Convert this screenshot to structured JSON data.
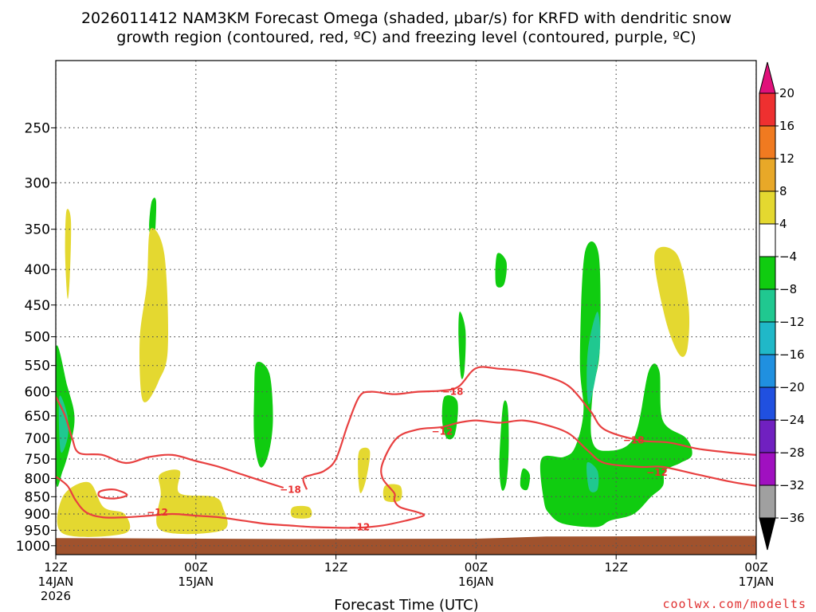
{
  "chart_data": {
    "type": "time-height contour",
    "title_line1": "2026011412 NAM3KM Forecast Omega (shaded, μbar/s) for KRFD with dendritic snow",
    "title_line2": "growth region (contoured, red, ºC) and freezing level (contoured, purple, ºC)",
    "xlabel": "Forecast Time (UTC)",
    "credit": "coolwx.com/modelts",
    "x_ticks": [
      {
        "hour": 0,
        "line1": "12Z",
        "line2": "14JAN",
        "line3": "2026"
      },
      {
        "hour": 12,
        "line1": "00Z",
        "line2": "15JAN",
        "line3": ""
      },
      {
        "hour": 24,
        "line1": "12Z",
        "line2": "",
        "line3": ""
      },
      {
        "hour": 36,
        "line1": "00Z",
        "line2": "16JAN",
        "line3": ""
      },
      {
        "hour": 48,
        "line1": "12Z",
        "line2": "",
        "line3": ""
      },
      {
        "hour": 60,
        "line1": "00Z",
        "line2": "17JAN",
        "line3": ""
      }
    ],
    "x_range_hours": [
      0,
      60
    ],
    "y_ticks": [
      250,
      300,
      350,
      400,
      450,
      500,
      550,
      600,
      650,
      700,
      750,
      800,
      850,
      900,
      950,
      1000
    ],
    "y_range_mb": [
      200,
      1030
    ],
    "y_scale": "log-pressure",
    "colorbar": {
      "labels": [
        "20",
        "16",
        "12",
        "8",
        "4",
        "−4",
        "−8",
        "−12",
        "−16",
        "−20",
        "−24",
        "−28",
        "−32",
        "−36"
      ],
      "colors": [
        "#e0107a",
        "#ee3030",
        "#f07a20",
        "#e8a828",
        "#e4d830",
        "#ffffff",
        "#10cc10",
        "#20c890",
        "#20b8c8",
        "#2090e0",
        "#2050e0",
        "#7020c0",
        "#a010c0",
        "#a0a0a0",
        "#000000"
      ]
    },
    "omega_areas": [
      {
        "sign": "up",
        "level": -4,
        "color": "#10cc10",
        "points": [
          [
            0,
            520
          ],
          [
            1,
            590
          ],
          [
            1.6,
            650
          ],
          [
            1.3,
            710
          ],
          [
            0.6,
            780
          ],
          [
            0,
            800
          ]
        ]
      },
      {
        "sign": "up",
        "level": -8,
        "color": "#20c890",
        "points": [
          [
            0.3,
            610
          ],
          [
            1,
            650
          ],
          [
            1,
            700
          ],
          [
            0.4,
            730
          ]
        ]
      },
      {
        "sign": "up",
        "level": -4,
        "color": "#10cc10",
        "points": [
          [
            8.2,
            320
          ],
          [
            8.6,
            320
          ],
          [
            8.4,
            370
          ],
          [
            8,
            350
          ]
        ]
      },
      {
        "sign": "up",
        "level": -4,
        "color": "#10cc10",
        "points": [
          [
            17.2,
            545
          ],
          [
            18.3,
            565
          ],
          [
            18.6,
            660
          ],
          [
            18.2,
            740
          ],
          [
            17.5,
            770
          ],
          [
            17,
            700
          ],
          [
            17,
            600
          ]
        ]
      },
      {
        "sign": "up",
        "level": -4,
        "color": "#10cc10",
        "points": [
          [
            34.6,
            460
          ],
          [
            35.1,
            490
          ],
          [
            35,
            560
          ],
          [
            34.7,
            570
          ],
          [
            34.5,
            500
          ]
        ]
      },
      {
        "sign": "up",
        "level": -4,
        "color": "#10cc10",
        "points": [
          [
            33.3,
            610
          ],
          [
            34.4,
            620
          ],
          [
            34.2,
            690
          ],
          [
            33.5,
            700
          ],
          [
            33.1,
            660
          ]
        ]
      },
      {
        "sign": "up",
        "level": -4,
        "color": "#10cc10",
        "points": [
          [
            37.8,
            380
          ],
          [
            38.6,
            390
          ],
          [
            38.4,
            420
          ],
          [
            37.7,
            420
          ]
        ]
      },
      {
        "sign": "up",
        "level": -4,
        "color": "#10cc10",
        "points": [
          [
            38.3,
            630
          ],
          [
            38.7,
            630
          ],
          [
            38.8,
            720
          ],
          [
            38.6,
            810
          ],
          [
            38.2,
            830
          ],
          [
            38,
            760
          ]
        ]
      },
      {
        "sign": "up",
        "level": -4,
        "color": "#10cc10",
        "points": [
          [
            40,
            775
          ],
          [
            40.6,
            790
          ],
          [
            40.4,
            830
          ],
          [
            39.8,
            820
          ]
        ]
      },
      {
        "sign": "up",
        "level": -4,
        "color": "#10cc10",
        "points": [
          [
            45.3,
            380
          ],
          [
            46.5,
            380
          ],
          [
            46.6,
            520
          ],
          [
            46,
            600
          ],
          [
            45.9,
            700
          ],
          [
            47,
            730
          ],
          [
            49.5,
            700
          ],
          [
            50.8,
            560
          ],
          [
            51.7,
            560
          ],
          [
            52,
            660
          ],
          [
            54,
            700
          ],
          [
            54.5,
            740
          ],
          [
            53.5,
            760
          ],
          [
            52.2,
            780
          ],
          [
            52,
            820
          ],
          [
            51,
            850
          ],
          [
            49.5,
            900
          ],
          [
            47.5,
            920
          ],
          [
            46.3,
            940
          ],
          [
            43.5,
            930
          ],
          [
            42.3,
            900
          ],
          [
            41.8,
            860
          ],
          [
            41.6,
            750
          ],
          [
            43.5,
            745
          ],
          [
            44.5,
            720
          ],
          [
            45.2,
            640
          ],
          [
            44.9,
            540
          ]
        ]
      },
      {
        "sign": "up",
        "level": -8,
        "color": "#20c890",
        "points": [
          [
            45.6,
            520
          ],
          [
            46.4,
            460
          ],
          [
            46.6,
            520
          ],
          [
            45.8,
            620
          ],
          [
            45.5,
            600
          ]
        ]
      },
      {
        "sign": "up",
        "level": -8,
        "color": "#20c890",
        "points": [
          [
            45.5,
            760
          ],
          [
            46.4,
            780
          ],
          [
            46.4,
            830
          ],
          [
            45.7,
            830
          ]
        ]
      },
      {
        "sign": "down",
        "level": 4,
        "color": "#e4d830",
        "points": [
          [
            0.9,
            330
          ],
          [
            1.3,
            340
          ],
          [
            1.2,
            410
          ],
          [
            1,
            440
          ],
          [
            0.8,
            380
          ]
        ]
      },
      {
        "sign": "down",
        "level": 4,
        "color": "#e4d830",
        "points": [
          [
            8.1,
            350
          ],
          [
            9.3,
            380
          ],
          [
            9.6,
            520
          ],
          [
            8.8,
            580
          ],
          [
            7.8,
            620
          ],
          [
            7.3,
            600
          ],
          [
            7.2,
            500
          ],
          [
            7.8,
            420
          ]
        ]
      },
      {
        "sign": "down",
        "level": 4,
        "color": "#e4d830",
        "points": [
          [
            0.6,
            850
          ],
          [
            2.8,
            810
          ],
          [
            4.1,
            880
          ],
          [
            5.9,
            900
          ],
          [
            5.9,
            960
          ],
          [
            0.6,
            960
          ]
        ]
      },
      {
        "sign": "down",
        "level": 4,
        "color": "#e4d830",
        "points": [
          [
            8.9,
            790
          ],
          [
            10.6,
            780
          ],
          [
            10.6,
            840
          ],
          [
            13.5,
            850
          ],
          [
            14.3,
            880
          ],
          [
            14.3,
            950
          ],
          [
            9,
            950
          ],
          [
            9,
            840
          ]
        ]
      },
      {
        "sign": "down",
        "level": 4,
        "color": "#e4d830",
        "points": [
          [
            20.3,
            880
          ],
          [
            21.7,
            880
          ],
          [
            21.8,
            910
          ],
          [
            20.3,
            910
          ]
        ]
      },
      {
        "sign": "down",
        "level": 4,
        "color": "#e4d830",
        "points": [
          [
            26,
            730
          ],
          [
            26.9,
            730
          ],
          [
            26.6,
            800
          ],
          [
            26.1,
            840
          ],
          [
            25.9,
            790
          ]
        ]
      },
      {
        "sign": "down",
        "level": 4,
        "color": "#e4d830",
        "points": [
          [
            28.2,
            820
          ],
          [
            29.5,
            820
          ],
          [
            29.5,
            860
          ],
          [
            28.2,
            860
          ]
        ]
      },
      {
        "sign": "down",
        "level": 4,
        "color": "#e4d830",
        "points": [
          [
            51.3,
            380
          ],
          [
            53.2,
            380
          ],
          [
            54.2,
            450
          ],
          [
            54.1,
            520
          ],
          [
            53.4,
            530
          ],
          [
            52.2,
            470
          ]
        ]
      }
    ],
    "dgz_contours": [
      {
        "label": "−18",
        "label_hour": 20.1,
        "label_mb": 830,
        "points": [
          [
            0,
            610
          ],
          [
            0.8,
            650
          ],
          [
            1.4,
            700
          ],
          [
            2,
            735
          ],
          [
            4,
            740
          ],
          [
            6,
            760
          ],
          [
            8,
            745
          ],
          [
            10,
            740
          ],
          [
            12,
            755
          ],
          [
            14,
            770
          ],
          [
            16,
            790
          ],
          [
            18,
            810
          ],
          [
            19.5,
            825
          ]
        ]
      },
      {
        "label": "−18",
        "label_hour": 34,
        "label_mb": 600,
        "points": [
          [
            21.5,
            830
          ],
          [
            21.2,
            800
          ],
          [
            22,
            790
          ],
          [
            23,
            780
          ],
          [
            24,
            750
          ],
          [
            25,
            670
          ],
          [
            26,
            610
          ],
          [
            27,
            600
          ],
          [
            29,
            605
          ],
          [
            31,
            600
          ],
          [
            33,
            598
          ],
          [
            34.5,
            590
          ],
          [
            36,
            555
          ],
          [
            38,
            556
          ],
          [
            40,
            560
          ],
          [
            42,
            570
          ],
          [
            44,
            590
          ],
          [
            45.8,
            640
          ],
          [
            47,
            680
          ],
          [
            50,
            705
          ],
          [
            52.5,
            710
          ],
          [
            55,
            725
          ],
          [
            58,
            735
          ],
          [
            60,
            740
          ]
        ]
      },
      {
        "label": "−12",
        "label_hour": 33.1,
        "label_mb": 685,
        "points": [
          [
            0,
            795
          ],
          [
            1,
            820
          ],
          [
            1.7,
            860
          ],
          [
            2.6,
            895
          ],
          [
            4,
            910
          ],
          [
            6,
            910
          ],
          [
            8,
            905
          ],
          [
            10,
            900
          ],
          [
            12,
            905
          ],
          [
            14,
            910
          ],
          [
            16,
            920
          ],
          [
            18,
            930
          ],
          [
            20,
            935
          ],
          [
            22,
            940
          ],
          [
            24,
            942
          ],
          [
            26,
            942
          ],
          [
            28,
            935
          ],
          [
            30,
            920
          ],
          [
            31.5,
            905
          ],
          [
            31,
            895
          ],
          [
            29.5,
            880
          ],
          [
            29,
            860
          ],
          [
            29,
            840
          ],
          [
            28,
            800
          ],
          [
            28,
            760
          ],
          [
            29.2,
            700
          ],
          [
            31,
            680
          ],
          [
            33,
            675
          ],
          [
            34.5,
            665
          ],
          [
            36,
            660
          ],
          [
            38,
            665
          ],
          [
            40,
            660
          ],
          [
            42,
            670
          ],
          [
            44,
            690
          ],
          [
            45.6,
            730
          ],
          [
            47,
            760
          ],
          [
            50,
            770
          ],
          [
            52,
            770
          ],
          [
            55,
            790
          ],
          [
            58,
            810
          ],
          [
            60,
            820
          ]
        ]
      },
      {
        "label": "−12",
        "label_hour": 8.7,
        "label_mb": 895,
        "points": []
      },
      {
        "label": "−12",
        "label_hour": 51.5,
        "label_mb": 785,
        "points": []
      },
      {
        "label": "−12",
        "label_hour": 26,
        "label_mb": 940,
        "points": []
      },
      {
        "label": "−18",
        "label_hour": 49.5,
        "label_mb": 705,
        "points": []
      },
      {
        "label": "",
        "label_hour": null,
        "label_mb": null,
        "points": [
          [
            3.8,
            835
          ],
          [
            5,
            830
          ],
          [
            6.1,
            845
          ],
          [
            5,
            855
          ],
          [
            3.8,
            850
          ]
        ]
      }
    ],
    "ground": {
      "color": "#a0522d",
      "top_mb": [
        [
          0,
          975
        ],
        [
          20,
          978
        ],
        [
          36,
          977
        ],
        [
          42,
          970
        ],
        [
          60,
          968
        ]
      ]
    }
  }
}
